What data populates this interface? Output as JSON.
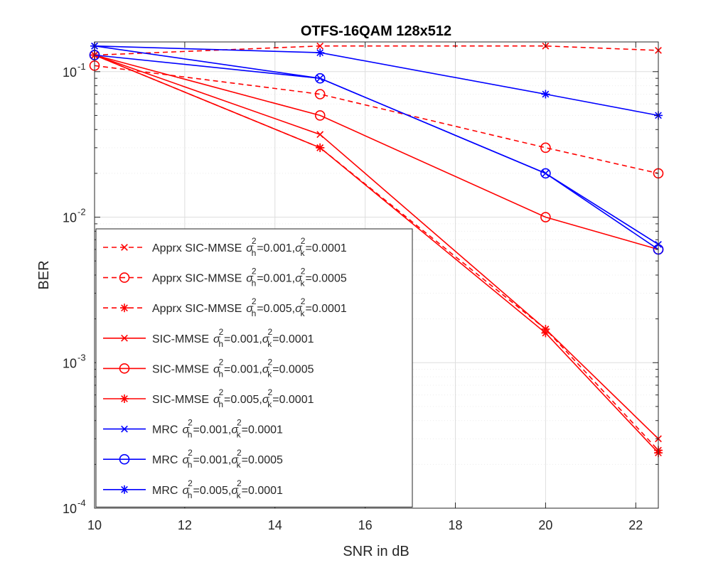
{
  "chart_data": {
    "type": "line",
    "title": "OTFS-16QAM 128x512",
    "xlabel": "SNR in dB",
    "ylabel": "BER",
    "xlim": [
      10,
      22.5
    ],
    "ylim": [
      0.0001,
      0.16
    ],
    "yscale": "log",
    "grid": true,
    "legend_position": "bottom-left",
    "x_ticks": [
      10,
      12,
      14,
      16,
      18,
      20,
      22
    ],
    "x_tick_labels": [
      "10",
      "12",
      "14",
      "16",
      "18",
      "20",
      "22"
    ],
    "y_ticks": [
      0.0001,
      0.001,
      0.01,
      0.1
    ],
    "y_tick_labels": [
      {
        "base": "10",
        "exp": "-4"
      },
      {
        "base": "10",
        "exp": "-3"
      },
      {
        "base": "10",
        "exp": "-2"
      },
      {
        "base": "10",
        "exp": "-1"
      }
    ],
    "x": [
      10,
      15,
      20,
      22.5
    ],
    "series": [
      {
        "prefix": "Apprx SIC-MMSE",
        "sh": "0.001",
        "sk": "0.0001",
        "color": "#ff0000",
        "dash": "dashed",
        "marker": "x",
        "values": [
          0.13,
          0.15,
          0.15,
          0.14
        ]
      },
      {
        "prefix": "Apprx SIC-MMSE",
        "sh": "0.001",
        "sk": "0.0005",
        "color": "#ff0000",
        "dash": "dashed",
        "marker": "o",
        "values": [
          0.11,
          0.07,
          0.03,
          0.02
        ]
      },
      {
        "prefix": "Apprx SIC-MMSE",
        "sh": "0.005",
        "sk": "0.0001",
        "color": "#ff0000",
        "dash": "dashed",
        "marker": "*",
        "values": [
          0.13,
          0.03,
          0.0017,
          0.00025
        ]
      },
      {
        "prefix": "SIC-MMSE",
        "sh": "0.001",
        "sk": "0.0001",
        "color": "#ff0000",
        "dash": "solid",
        "marker": "x",
        "values": [
          0.13,
          0.037,
          0.0017,
          0.0003
        ]
      },
      {
        "prefix": "SIC-MMSE",
        "sh": "0.001",
        "sk": "0.0005",
        "color": "#ff0000",
        "dash": "solid",
        "marker": "o",
        "values": [
          0.13,
          0.05,
          0.01,
          0.006
        ]
      },
      {
        "prefix": "SIC-MMSE",
        "sh": "0.005",
        "sk": "0.0001",
        "color": "#ff0000",
        "dash": "solid",
        "marker": "*",
        "values": [
          0.13,
          0.03,
          0.0016,
          0.00024
        ]
      },
      {
        "prefix": "MRC",
        "sh": "0.001",
        "sk": "0.0001",
        "color": "#0000ff",
        "dash": "solid",
        "marker": "x",
        "values": [
          0.15,
          0.09,
          0.02,
          0.0065
        ]
      },
      {
        "prefix": "MRC",
        "sh": "0.001",
        "sk": "0.0005",
        "color": "#0000ff",
        "dash": "solid",
        "marker": "o",
        "values": [
          0.13,
          0.09,
          0.02,
          0.006
        ]
      },
      {
        "prefix": "MRC",
        "sh": "0.005",
        "sk": "0.0001",
        "color": "#0000ff",
        "dash": "solid",
        "marker": "*",
        "values": [
          0.15,
          0.135,
          0.07,
          0.05
        ]
      }
    ]
  }
}
